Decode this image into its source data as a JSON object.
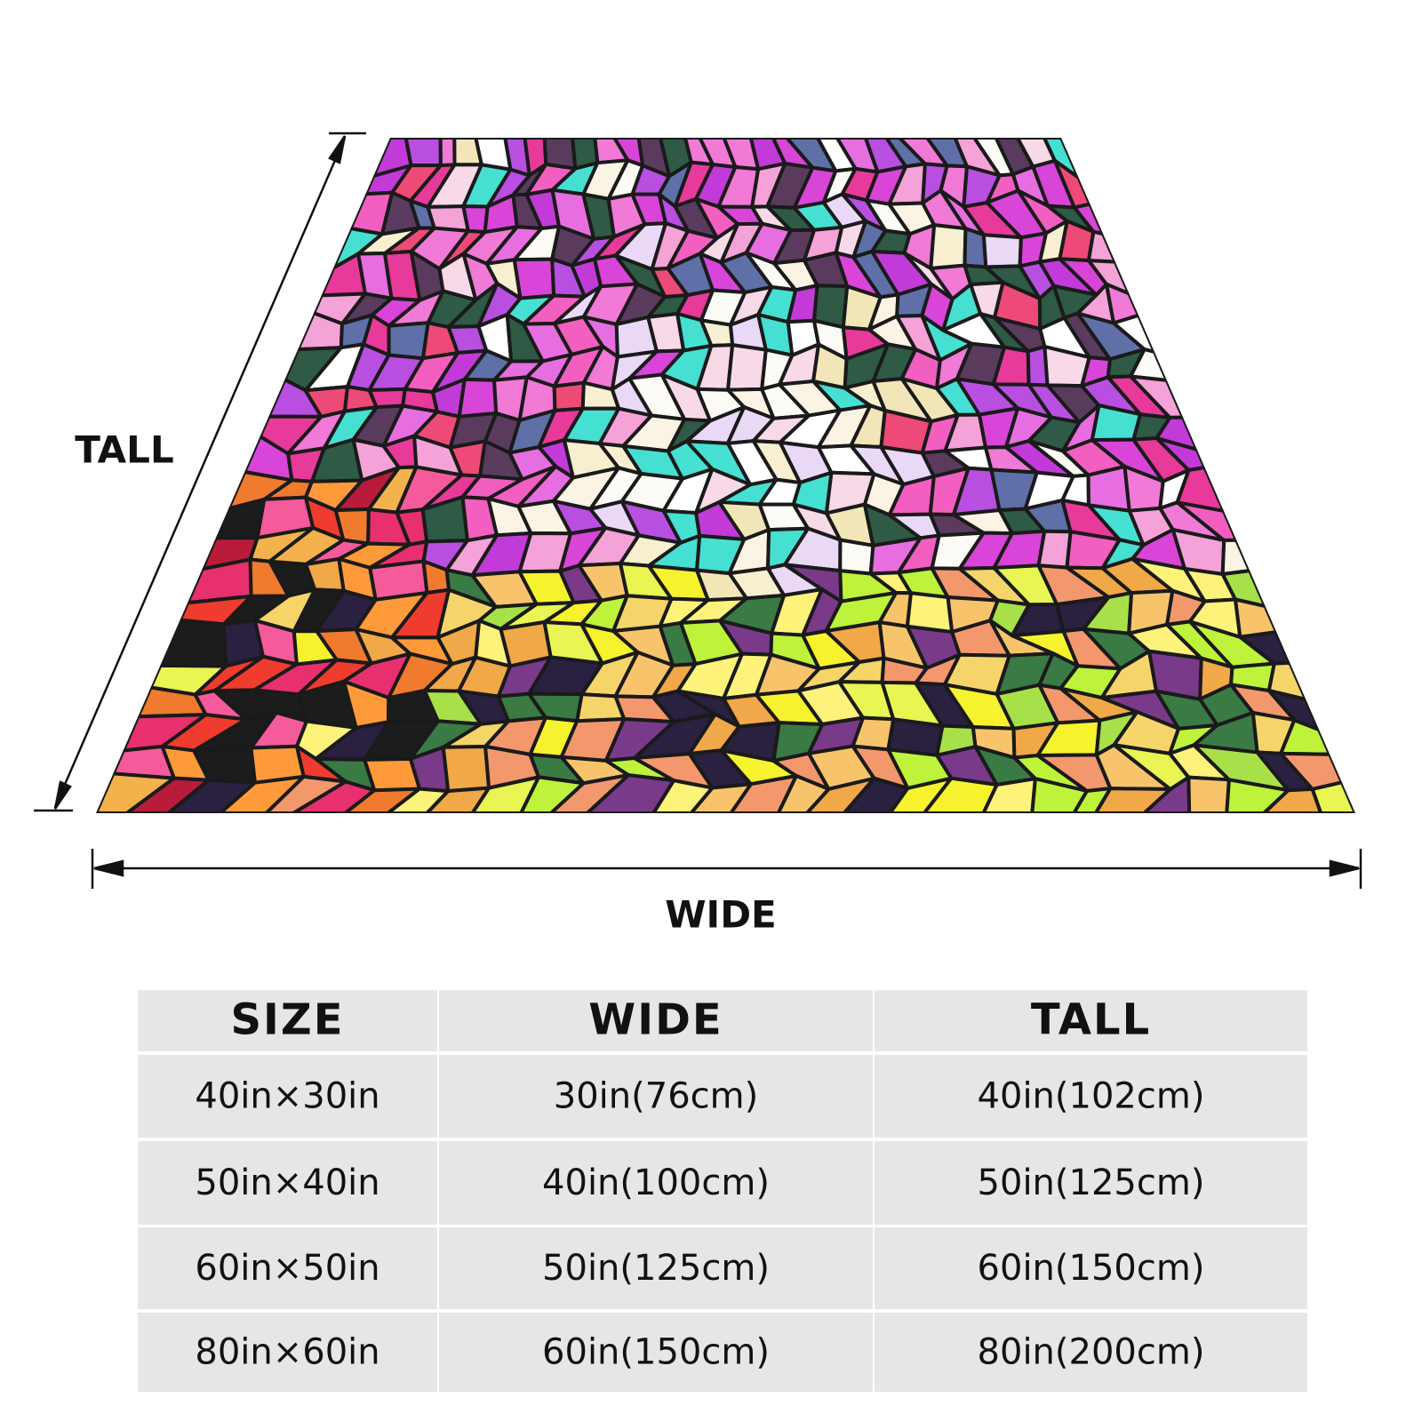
{
  "labels": {
    "tall": "TALL",
    "wide": "WIDE"
  },
  "table": {
    "header": [
      "SIZE",
      "WIDE",
      "TALL"
    ],
    "rows": [
      [
        "40in×30in",
        "30in(76cm)",
        "40in(102cm)"
      ],
      [
        "50in×40in",
        "40in(100cm)",
        "50in(125cm)"
      ],
      [
        "60in×50in",
        "50in(125cm)",
        "60in(150cm)"
      ],
      [
        "80in×60in",
        "60in(150cm)",
        "80in(200cm)"
      ]
    ]
  }
}
